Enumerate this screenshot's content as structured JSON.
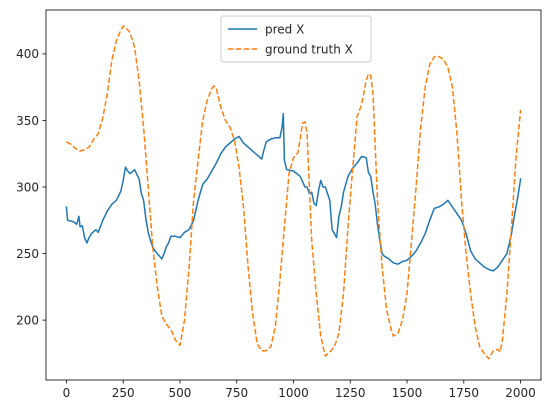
{
  "chart_data": {
    "type": "line",
    "title": "",
    "xlabel": "",
    "ylabel": "",
    "xlim": [
      -90,
      2090
    ],
    "ylim": [
      155,
      433
    ],
    "x_ticks": [
      0,
      250,
      500,
      750,
      1000,
      1250,
      1500,
      1750,
      2000
    ],
    "y_ticks": [
      200,
      250,
      300,
      350,
      400
    ],
    "grid": false,
    "legend": "top-center",
    "series": [
      {
        "name": "pred X",
        "color": "#1f77b4",
        "style": "solid",
        "points": [
          [
            0,
            285
          ],
          [
            5,
            275
          ],
          [
            30,
            274
          ],
          [
            45,
            272
          ],
          [
            55,
            278
          ],
          [
            60,
            270
          ],
          [
            70,
            271
          ],
          [
            80,
            262
          ],
          [
            90,
            258
          ],
          [
            100,
            262
          ],
          [
            110,
            265
          ],
          [
            130,
            268
          ],
          [
            140,
            266
          ],
          [
            160,
            275
          ],
          [
            180,
            282
          ],
          [
            200,
            287
          ],
          [
            220,
            290
          ],
          [
            240,
            297
          ],
          [
            250,
            305
          ],
          [
            260,
            315
          ],
          [
            270,
            312
          ],
          [
            280,
            310
          ],
          [
            300,
            313
          ],
          [
            320,
            306
          ],
          [
            330,
            295
          ],
          [
            340,
            290
          ],
          [
            350,
            276
          ],
          [
            360,
            266
          ],
          [
            370,
            260
          ],
          [
            380,
            255
          ],
          [
            390,
            252
          ],
          [
            400,
            250
          ],
          [
            410,
            248
          ],
          [
            420,
            246
          ],
          [
            430,
            250
          ],
          [
            440,
            255
          ],
          [
            450,
            258
          ],
          [
            460,
            263
          ],
          [
            480,
            263
          ],
          [
            500,
            262
          ],
          [
            520,
            266
          ],
          [
            540,
            268
          ],
          [
            560,
            275
          ],
          [
            580,
            290
          ],
          [
            600,
            302
          ],
          [
            620,
            306
          ],
          [
            640,
            312
          ],
          [
            660,
            318
          ],
          [
            680,
            325
          ],
          [
            700,
            330
          ],
          [
            720,
            333
          ],
          [
            740,
            336
          ],
          [
            760,
            338
          ],
          [
            780,
            333
          ],
          [
            800,
            330
          ],
          [
            820,
            327
          ],
          [
            840,
            324
          ],
          [
            860,
            321
          ],
          [
            870,
            328
          ],
          [
            880,
            334
          ],
          [
            900,
            336
          ],
          [
            920,
            337
          ],
          [
            940,
            337
          ],
          [
            950,
            345
          ],
          [
            955,
            355
          ],
          [
            960,
            320
          ],
          [
            970,
            313
          ],
          [
            1000,
            312
          ],
          [
            1030,
            308
          ],
          [
            1050,
            300
          ],
          [
            1060,
            300
          ],
          [
            1070,
            295
          ],
          [
            1080,
            296
          ],
          [
            1090,
            288
          ],
          [
            1100,
            286
          ],
          [
            1110,
            297
          ],
          [
            1120,
            305
          ],
          [
            1130,
            300
          ],
          [
            1140,
            300
          ],
          [
            1150,
            295
          ],
          [
            1160,
            290
          ],
          [
            1170,
            268
          ],
          [
            1180,
            265
          ],
          [
            1190,
            262
          ],
          [
            1200,
            278
          ],
          [
            1210,
            285
          ],
          [
            1220,
            296
          ],
          [
            1240,
            308
          ],
          [
            1260,
            314
          ],
          [
            1280,
            318
          ],
          [
            1300,
            323
          ],
          [
            1320,
            322
          ],
          [
            1330,
            311
          ],
          [
            1340,
            308
          ],
          [
            1350,
            296
          ],
          [
            1360,
            287
          ],
          [
            1370,
            272
          ],
          [
            1380,
            260
          ],
          [
            1390,
            250
          ],
          [
            1400,
            248
          ],
          [
            1420,
            246
          ],
          [
            1440,
            243
          ],
          [
            1460,
            242
          ],
          [
            1480,
            244
          ],
          [
            1500,
            245
          ],
          [
            1520,
            248
          ],
          [
            1540,
            252
          ],
          [
            1560,
            258
          ],
          [
            1580,
            265
          ],
          [
            1600,
            275
          ],
          [
            1620,
            284
          ],
          [
            1640,
            285
          ],
          [
            1660,
            287
          ],
          [
            1680,
            290
          ],
          [
            1700,
            285
          ],
          [
            1720,
            280
          ],
          [
            1740,
            275
          ],
          [
            1760,
            265
          ],
          [
            1780,
            252
          ],
          [
            1800,
            246
          ],
          [
            1820,
            243
          ],
          [
            1840,
            240
          ],
          [
            1860,
            238
          ],
          [
            1880,
            237
          ],
          [
            1900,
            240
          ],
          [
            1920,
            245
          ],
          [
            1940,
            250
          ],
          [
            1960,
            265
          ],
          [
            1970,
            276
          ],
          [
            1980,
            285
          ],
          [
            1990,
            295
          ],
          [
            2000,
            306
          ]
        ]
      },
      {
        "name": "ground truth X",
        "color": "#ff7f0e",
        "style": "dashed",
        "points": [
          [
            0,
            334
          ],
          [
            20,
            332
          ],
          [
            40,
            329
          ],
          [
            60,
            327
          ],
          [
            80,
            328
          ],
          [
            100,
            330
          ],
          [
            120,
            336
          ],
          [
            140,
            340
          ],
          [
            160,
            352
          ],
          [
            180,
            370
          ],
          [
            200,
            395
          ],
          [
            220,
            410
          ],
          [
            240,
            418
          ],
          [
            250,
            421
          ],
          [
            260,
            420
          ],
          [
            280,
            416
          ],
          [
            300,
            405
          ],
          [
            320,
            380
          ],
          [
            340,
            345
          ],
          [
            360,
            300
          ],
          [
            380,
            255
          ],
          [
            400,
            225
          ],
          [
            420,
            203
          ],
          [
            440,
            197
          ],
          [
            460,
            193
          ],
          [
            480,
            185
          ],
          [
            500,
            181
          ],
          [
            520,
            200
          ],
          [
            540,
            240
          ],
          [
            560,
            290
          ],
          [
            580,
            320
          ],
          [
            600,
            350
          ],
          [
            620,
            365
          ],
          [
            640,
            374
          ],
          [
            650,
            376
          ],
          [
            660,
            374
          ],
          [
            680,
            360
          ],
          [
            700,
            350
          ],
          [
            720,
            345
          ],
          [
            740,
            335
          ],
          [
            760,
            315
          ],
          [
            780,
            285
          ],
          [
            800,
            240
          ],
          [
            820,
            205
          ],
          [
            840,
            182
          ],
          [
            860,
            177
          ],
          [
            880,
            177
          ],
          [
            900,
            180
          ],
          [
            920,
            195
          ],
          [
            940,
            230
          ],
          [
            960,
            270
          ],
          [
            980,
            310
          ],
          [
            1000,
            322
          ],
          [
            1020,
            326
          ],
          [
            1030,
            337
          ],
          [
            1040,
            348
          ],
          [
            1050,
            349
          ],
          [
            1060,
            340
          ],
          [
            1070,
            300
          ],
          [
            1080,
            260
          ],
          [
            1100,
            220
          ],
          [
            1120,
            188
          ],
          [
            1140,
            173
          ],
          [
            1160,
            176
          ],
          [
            1180,
            180
          ],
          [
            1200,
            190
          ],
          [
            1220,
            220
          ],
          [
            1240,
            270
          ],
          [
            1260,
            312
          ],
          [
            1280,
            353
          ],
          [
            1300,
            362
          ],
          [
            1320,
            380
          ],
          [
            1330,
            385
          ],
          [
            1340,
            384
          ],
          [
            1350,
            370
          ],
          [
            1370,
            290
          ],
          [
            1390,
            240
          ],
          [
            1410,
            208
          ],
          [
            1430,
            193
          ],
          [
            1440,
            188
          ],
          [
            1460,
            190
          ],
          [
            1480,
            200
          ],
          [
            1500,
            220
          ],
          [
            1520,
            260
          ],
          [
            1540,
            300
          ],
          [
            1560,
            345
          ],
          [
            1580,
            375
          ],
          [
            1600,
            392
          ],
          [
            1620,
            398
          ],
          [
            1640,
            398
          ],
          [
            1660,
            396
          ],
          [
            1680,
            390
          ],
          [
            1700,
            375
          ],
          [
            1720,
            340
          ],
          [
            1740,
            290
          ],
          [
            1760,
            250
          ],
          [
            1780,
            220
          ],
          [
            1800,
            195
          ],
          [
            1820,
            180
          ],
          [
            1840,
            175
          ],
          [
            1860,
            171
          ],
          [
            1880,
            177
          ],
          [
            1900,
            178
          ],
          [
            1910,
            176
          ],
          [
            1920,
            185
          ],
          [
            1940,
            220
          ],
          [
            1960,
            270
          ],
          [
            1980,
            322
          ],
          [
            2000,
            358
          ]
        ]
      }
    ]
  }
}
